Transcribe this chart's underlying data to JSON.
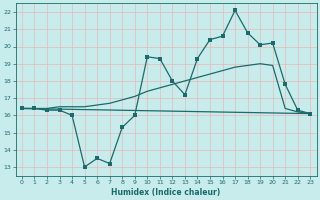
{
  "xlabel": "Humidex (Indice chaleur)",
  "bg_color": "#c8ecec",
  "grid_color": "#e8b8b8",
  "line_color": "#1a6b6b",
  "xlim": [
    -0.5,
    23.5
  ],
  "ylim": [
    12.5,
    22.5
  ],
  "yticks": [
    13,
    14,
    15,
    16,
    17,
    18,
    19,
    20,
    21,
    22
  ],
  "xticks": [
    0,
    1,
    2,
    3,
    4,
    5,
    6,
    7,
    8,
    9,
    10,
    11,
    12,
    13,
    14,
    15,
    16,
    17,
    18,
    19,
    20,
    21,
    22,
    23
  ],
  "curve1_x": [
    0,
    1,
    2,
    3,
    4,
    5,
    6,
    7,
    8,
    9,
    10,
    11,
    12,
    13,
    14,
    15,
    16,
    17,
    18,
    19,
    20,
    21,
    22,
    23
  ],
  "curve1_y": [
    16.4,
    16.4,
    16.3,
    16.3,
    16.0,
    13.0,
    13.5,
    13.2,
    15.3,
    16.0,
    19.4,
    19.3,
    18.0,
    17.2,
    19.3,
    20.4,
    20.6,
    22.1,
    20.8,
    20.1,
    20.2,
    17.8,
    16.3,
    16.1
  ],
  "curve2_x": [
    0,
    23
  ],
  "curve2_y": [
    16.4,
    16.1
  ],
  "curve3_x": [
    0,
    1,
    2,
    3,
    4,
    5,
    6,
    7,
    8,
    9,
    10,
    11,
    12,
    13,
    14,
    15,
    16,
    17,
    18,
    19,
    20,
    21,
    22,
    23
  ],
  "curve3_y": [
    16.4,
    16.4,
    16.4,
    16.5,
    16.5,
    16.5,
    16.6,
    16.7,
    16.9,
    17.1,
    17.4,
    17.6,
    17.8,
    18.0,
    18.2,
    18.4,
    18.6,
    18.8,
    18.9,
    19.0,
    18.9,
    16.4,
    16.2,
    16.1
  ]
}
